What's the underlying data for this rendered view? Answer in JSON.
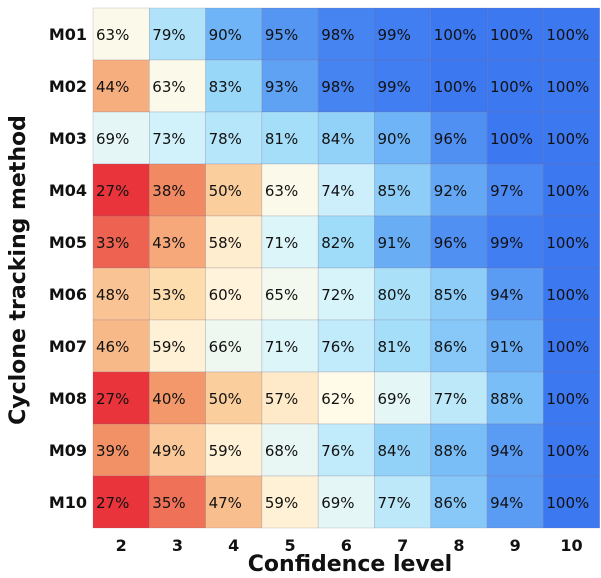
{
  "chart_data": {
    "type": "heatmap",
    "xlabel": "Confidence level",
    "ylabel": "Cyclone tracking method",
    "x_categories": [
      "2",
      "3",
      "4",
      "5",
      "6",
      "7",
      "8",
      "9",
      "10"
    ],
    "y_categories": [
      "M01",
      "M02",
      "M03",
      "M04",
      "M05",
      "M06",
      "M07",
      "M08",
      "M09",
      "M10"
    ],
    "values": [
      [
        63,
        79,
        90,
        95,
        98,
        99,
        100,
        100,
        100
      ],
      [
        44,
        63,
        83,
        93,
        98,
        99,
        100,
        100,
        100
      ],
      [
        69,
        73,
        78,
        81,
        84,
        90,
        96,
        100,
        100
      ],
      [
        27,
        38,
        50,
        63,
        74,
        85,
        92,
        97,
        100
      ],
      [
        33,
        43,
        58,
        71,
        82,
        91,
        96,
        99,
        100
      ],
      [
        48,
        53,
        60,
        65,
        72,
        80,
        85,
        94,
        100
      ],
      [
        46,
        59,
        66,
        71,
        76,
        81,
        86,
        91,
        100
      ],
      [
        27,
        40,
        50,
        57,
        62,
        69,
        77,
        88,
        100
      ],
      [
        39,
        49,
        59,
        68,
        76,
        84,
        88,
        94,
        100
      ],
      [
        27,
        35,
        47,
        59,
        69,
        77,
        86,
        94,
        100
      ]
    ],
    "value_suffix": "%",
    "colormap": {
      "low_color": "#e8343a",
      "mid_color": "#fffbe8",
      "high_color": "#3c78f0"
    },
    "grid": false,
    "legend": "none"
  }
}
